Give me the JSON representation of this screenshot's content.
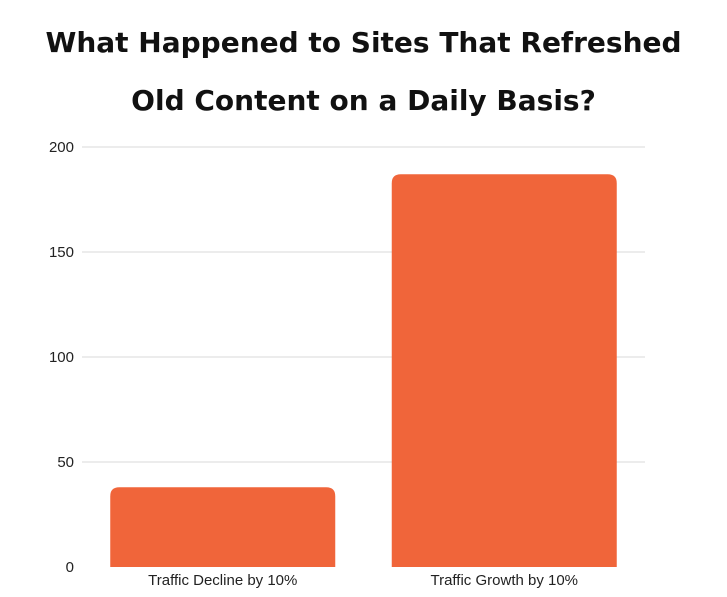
{
  "chart_data": {
    "type": "bar",
    "title_lines": [
      "What Happened to Sites That Refreshed",
      "Old Content on a Daily Basis?"
    ],
    "categories": [
      "Traffic Decline by 10%",
      "Traffic Growth by 10%"
    ],
    "values": [
      38,
      187
    ],
    "ylim": [
      0,
      200
    ],
    "yticks": [
      0,
      50,
      100,
      150,
      200
    ],
    "grid": true,
    "bar_color": "#F0653A",
    "xlabel": "",
    "ylabel": ""
  }
}
